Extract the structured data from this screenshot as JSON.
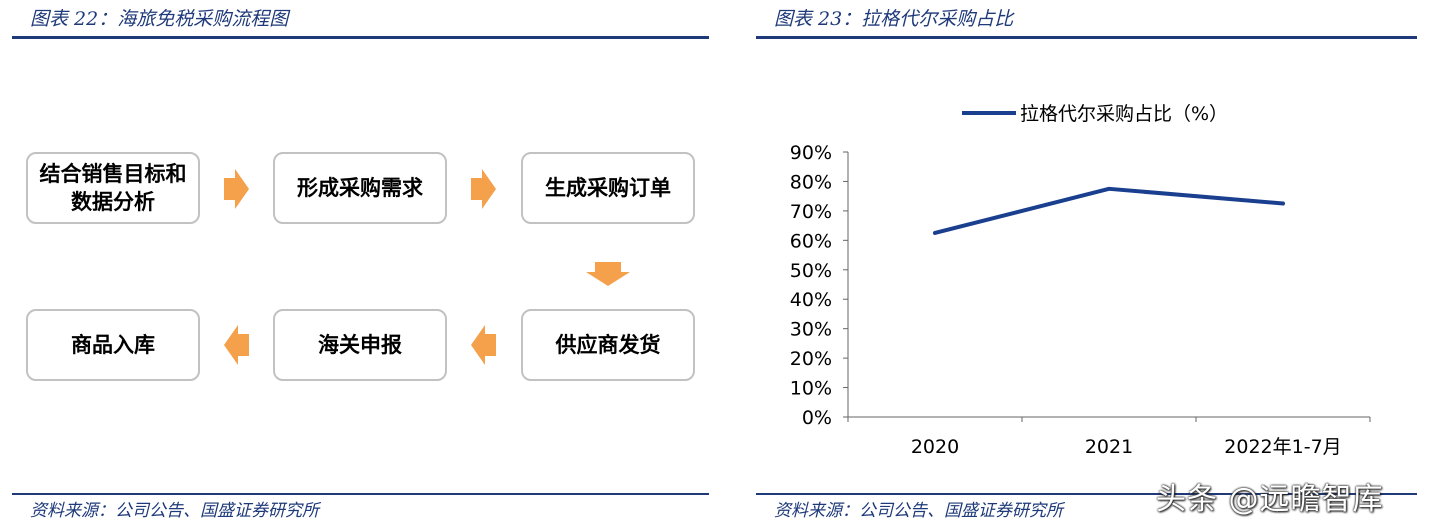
{
  "left_panel": {
    "title": "图表 22：海旅免税采购流程图",
    "source": "资料来源：公司公告、国盛证券研究所",
    "steps": [
      {
        "label": "结合销售目标和\n数据分析"
      },
      {
        "label": "形成采购需求"
      },
      {
        "label": "生成采购订单"
      },
      {
        "label": "供应商发货"
      },
      {
        "label": "海关申报"
      },
      {
        "label": "商品入库"
      }
    ],
    "arrow_color": "#f5a04a"
  },
  "right_panel": {
    "title": "图表 23：拉格代尔采购占比",
    "source": "资料来源：公司公告、国盛证券研究所"
  },
  "chart_data": {
    "type": "line",
    "categories": [
      "2020",
      "2021",
      "2022年1-7月"
    ],
    "series": [
      {
        "name": "拉格代尔采购占比（%）",
        "values": [
          62.5,
          77.5,
          72.5
        ],
        "color": "#1a3f8f"
      }
    ],
    "ylim": [
      0,
      90
    ],
    "yticks": [
      "0%",
      "10%",
      "20%",
      "30%",
      "40%",
      "50%",
      "60%",
      "70%",
      "80%",
      "90%"
    ],
    "grid": false,
    "legend": "top"
  },
  "watermark": "头条 @远瞻智库"
}
